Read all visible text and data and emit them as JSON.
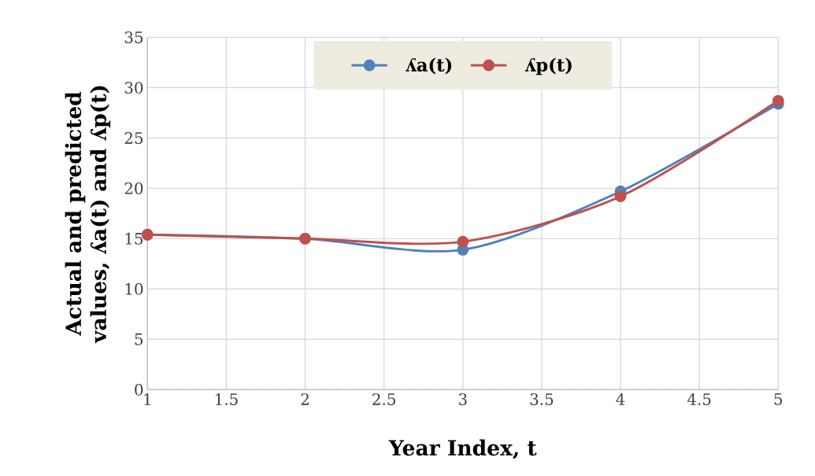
{
  "chart_data": {
    "type": "line",
    "xlabel": "Year Index, t",
    "ylabel": "Actual and predicted values, ʎa(t)  and ʎp(t)",
    "x": [
      1,
      2,
      3,
      4,
      5
    ],
    "series": [
      {
        "name": "ʎa(t)",
        "color": "#4f81bd",
        "values": [
          15.4,
          15.0,
          13.9,
          19.7,
          28.4
        ]
      },
      {
        "name": "ʎp(t)",
        "color": "#c0504d",
        "values": [
          15.4,
          15.0,
          14.7,
          19.2,
          28.7
        ]
      }
    ],
    "xlim": [
      1,
      5
    ],
    "xticks": [
      1,
      1.5,
      2,
      2.5,
      3,
      3.5,
      4,
      4.5,
      5
    ],
    "ylim": [
      0,
      35
    ],
    "yticks": [
      0,
      5,
      10,
      15,
      20,
      25,
      30,
      35
    ],
    "grid": true,
    "legend": "top",
    "marker": "circle",
    "line_style": "solid"
  }
}
